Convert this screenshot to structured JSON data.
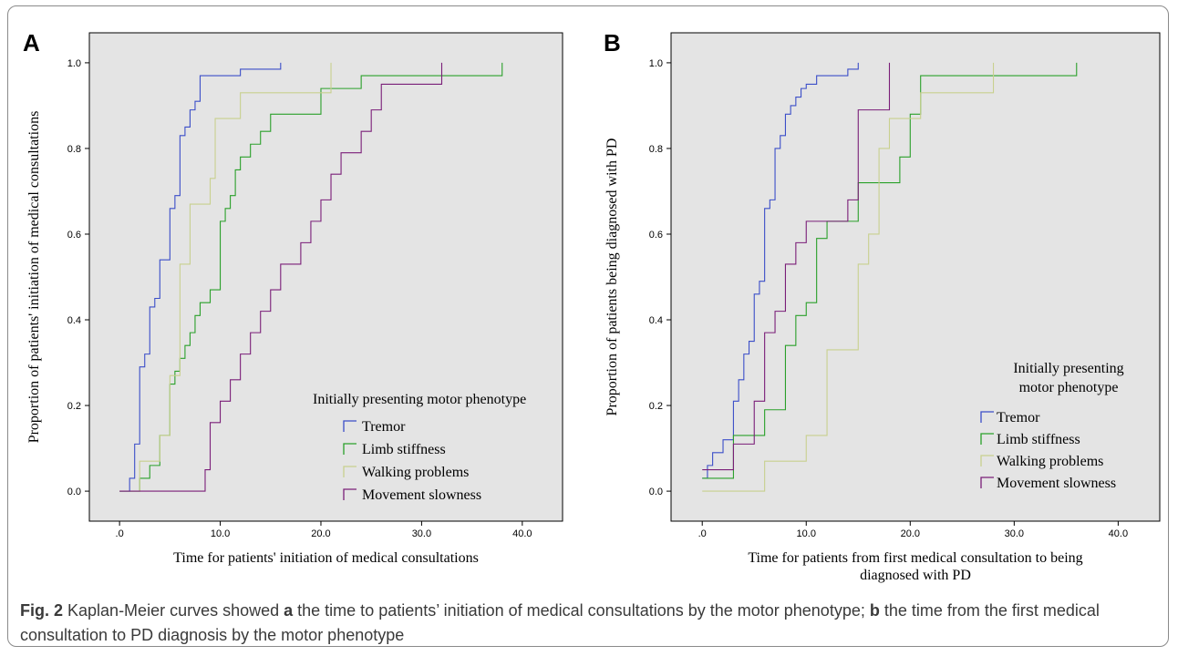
{
  "caption": {
    "label": "Fig. 2",
    "parts": [
      {
        "text": " Kaplan-Meier curves showed ",
        "bold": false
      },
      {
        "text": "a",
        "bold": true
      },
      {
        "text": " the time to patients’ initiation of medical consultations by the motor phenotype; ",
        "bold": false
      },
      {
        "text": "b",
        "bold": true
      },
      {
        "text": " the time from the first medical consultation to PD diagnosis by the motor phenotype",
        "bold": false
      }
    ]
  },
  "colors": {
    "Tremor": "#3b4ec8",
    "Limb stiffness": "#2aa02a",
    "Walking problems": "#c8d08e",
    "Movement slowness": "#7a1e78",
    "plot_background": "#e4e4e4"
  },
  "chart_data": [
    {
      "panel": "A",
      "type": "line",
      "step": true,
      "xlabel": "Time for patients' initiation of medical consultations",
      "ylabel": "Proportion of patients' initiation of medical consultations",
      "xlim": [
        -3,
        44
      ],
      "ylim": [
        -0.07,
        1.07
      ],
      "xticks": [
        0,
        10,
        20,
        30,
        40
      ],
      "xtick_labels": [
        ".0",
        "10.0",
        "20.0",
        "30.0",
        "40.0"
      ],
      "yticks": [
        0,
        0.2,
        0.4,
        0.6,
        0.8,
        1.0
      ],
      "ytick_labels": [
        "0.0",
        "0.2",
        "0.4",
        "0.6",
        "0.8",
        "1.0"
      ],
      "legend": {
        "title": [
          "Initially presenting motor phenotype"
        ],
        "position": "lower-right"
      },
      "series": [
        {
          "name": "Tremor",
          "x": [
            0,
            1,
            1.5,
            2,
            2.5,
            3,
            3.5,
            4,
            4.5,
            5,
            5.5,
            6,
            6.5,
            7,
            7.5,
            8,
            9,
            10,
            12,
            16
          ],
          "y": [
            0,
            0.03,
            0.11,
            0.29,
            0.32,
            0.43,
            0.45,
            0.54,
            0.54,
            0.66,
            0.69,
            0.83,
            0.85,
            0.89,
            0.91,
            0.97,
            0.97,
            0.97,
            0.985,
            1.0
          ]
        },
        {
          "name": "Limb stiffness",
          "x": [
            0,
            2,
            3,
            3.5,
            4,
            5,
            5.5,
            6,
            6.5,
            7,
            7.5,
            8,
            9,
            10,
            10.5,
            11,
            11.5,
            12,
            13,
            14,
            15,
            16,
            20,
            24,
            38
          ],
          "y": [
            0,
            0.03,
            0.06,
            0.06,
            0.13,
            0.25,
            0.28,
            0.31,
            0.34,
            0.37,
            0.41,
            0.44,
            0.47,
            0.63,
            0.66,
            0.69,
            0.75,
            0.78,
            0.81,
            0.84,
            0.88,
            0.88,
            0.94,
            0.97,
            1.0
          ]
        },
        {
          "name": "Walking problems",
          "x": [
            0,
            2,
            3,
            4,
            5,
            6,
            7,
            9,
            9.5,
            10,
            12,
            15,
            21
          ],
          "y": [
            0,
            0.07,
            0.07,
            0.13,
            0.27,
            0.53,
            0.67,
            0.73,
            0.87,
            0.87,
            0.93,
            0.93,
            1.0
          ]
        },
        {
          "name": "Movement slowness",
          "x": [
            0,
            8.5,
            9,
            10,
            11,
            12,
            13,
            14,
            15,
            16,
            17,
            18,
            19,
            20,
            21,
            22,
            23,
            24,
            25,
            26,
            32
          ],
          "y": [
            0,
            0.05,
            0.16,
            0.21,
            0.26,
            0.32,
            0.37,
            0.42,
            0.47,
            0.53,
            0.53,
            0.58,
            0.63,
            0.68,
            0.74,
            0.79,
            0.79,
            0.84,
            0.89,
            0.95,
            1.0
          ]
        }
      ]
    },
    {
      "panel": "B",
      "type": "line",
      "step": true,
      "xlabel": "Time for patients from first medical consultation to being diagnosed with PD",
      "ylabel": "Proportion of patients being diagnosed with PD",
      "xlim": [
        -3,
        44
      ],
      "ylim": [
        -0.07,
        1.07
      ],
      "xticks": [
        0,
        10,
        20,
        30,
        40
      ],
      "xtick_labels": [
        ".0",
        "10.0",
        "20.0",
        "30.0",
        "40.0"
      ],
      "yticks": [
        0,
        0.2,
        0.4,
        0.6,
        0.8,
        1.0
      ],
      "ytick_labels": [
        "0.0",
        "0.2",
        "0.4",
        "0.6",
        "0.8",
        "1.0"
      ],
      "legend": {
        "title": [
          "Initially presenting",
          "motor phenotype"
        ],
        "position": "lower-right"
      },
      "series": [
        {
          "name": "Tremor",
          "x": [
            0,
            0.5,
            1,
            2,
            3,
            3.5,
            4,
            4.5,
            5,
            5.5,
            6,
            6.5,
            7,
            7.5,
            8,
            8.5,
            9,
            9.5,
            10,
            11,
            12,
            14,
            15
          ],
          "y": [
            0.03,
            0.06,
            0.09,
            0.12,
            0.21,
            0.26,
            0.32,
            0.35,
            0.46,
            0.49,
            0.66,
            0.68,
            0.8,
            0.83,
            0.88,
            0.9,
            0.92,
            0.94,
            0.95,
            0.97,
            0.97,
            0.985,
            1.0
          ]
        },
        {
          "name": "Limb stiffness",
          "x": [
            0,
            3,
            6,
            8,
            9,
            10,
            11,
            12,
            15,
            16,
            19,
            20,
            21,
            36
          ],
          "y": [
            0.03,
            0.13,
            0.19,
            0.34,
            0.41,
            0.44,
            0.59,
            0.63,
            0.72,
            0.72,
            0.78,
            0.88,
            0.97,
            1.0
          ]
        },
        {
          "name": "Walking problems",
          "x": [
            0,
            6,
            10,
            12,
            13,
            15,
            16,
            17,
            18,
            21,
            28
          ],
          "y": [
            0,
            0.07,
            0.13,
            0.33,
            0.33,
            0.53,
            0.6,
            0.8,
            0.87,
            0.93,
            1.0
          ]
        },
        {
          "name": "Movement slowness",
          "x": [
            0,
            3,
            5,
            6,
            7,
            8,
            9,
            10,
            11,
            12,
            13,
            14,
            15,
            18
          ],
          "y": [
            0.05,
            0.11,
            0.21,
            0.37,
            0.42,
            0.53,
            0.58,
            0.63,
            0.63,
            0.63,
            0.63,
            0.68,
            0.89,
            1.0
          ]
        }
      ]
    }
  ]
}
